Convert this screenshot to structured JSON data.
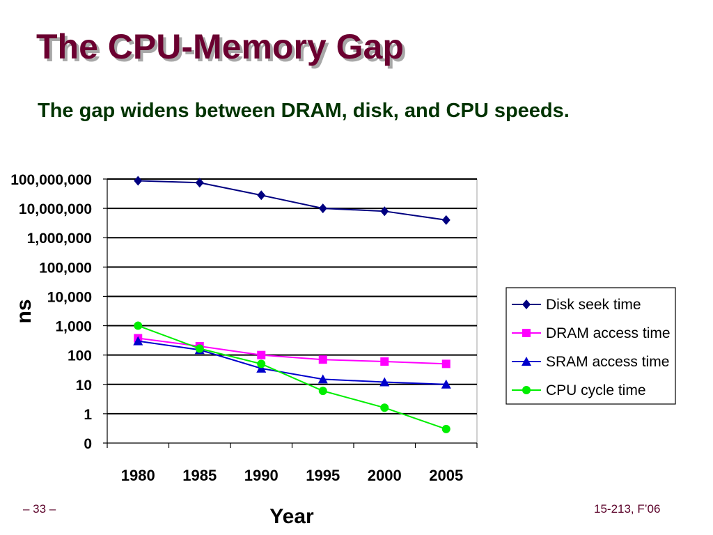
{
  "slide": {
    "title": "The CPU-Memory Gap",
    "subtitle": "The gap widens between DRAM, disk, and CPU speeds.",
    "page_number": "– 33 –",
    "course": "15-213, F’06"
  },
  "colors": {
    "title": "#6b0030",
    "subtitle": "#003300",
    "footer": "#5a0028"
  },
  "chart_data": {
    "type": "line",
    "xlabel": "Year",
    "ylabel": "ns",
    "yscale": "log",
    "x": [
      1980,
      1985,
      1990,
      1995,
      2000,
      2005
    ],
    "x_tick_labels": [
      "1980",
      "1985",
      "1990",
      "1995",
      "2000",
      "2005"
    ],
    "y_tick_values": [
      0.1,
      1,
      10,
      100,
      1000,
      10000,
      100000,
      1000000,
      10000000,
      100000000
    ],
    "y_tick_labels": [
      "0",
      "1",
      "10",
      "100",
      "1,000",
      "10,000",
      "100,000",
      "1,000,000",
      "10,000,000",
      "100,000,000"
    ],
    "ylim": [
      0.1,
      100000000
    ],
    "grid": "horizontal",
    "legend_position": "right",
    "series": [
      {
        "name": "Disk seek time",
        "values": [
          87000000,
          75000000,
          28000000,
          10000000,
          8000000,
          4000000
        ],
        "color": "#000080",
        "marker": "diamond"
      },
      {
        "name": "DRAM access time",
        "values": [
          375,
          200,
          100,
          70,
          60,
          50
        ],
        "color": "#ff00ff",
        "marker": "square"
      },
      {
        "name": "SRAM access time",
        "values": [
          300,
          150,
          35,
          15,
          12,
          10
        ],
        "color": "#0000cc",
        "marker": "triangle"
      },
      {
        "name": "CPU cycle time",
        "values": [
          1000,
          166,
          50,
          6,
          1.6,
          0.3
        ],
        "color": "#00ee00",
        "marker": "circle"
      }
    ]
  }
}
